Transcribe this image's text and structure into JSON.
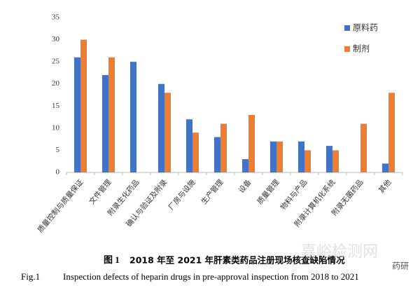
{
  "chart_data": {
    "type": "bar",
    "figure_label": "图 1",
    "title": "2018 年至 2021 年肝素类药品注册现场核查缺陷情况",
    "figure_label_en": "Fig.1",
    "subtitle": "Inspection defects of heparin drugs in pre-approval inspection from 2018 to 2021",
    "categories": [
      "质量控制与质量保证",
      "文件管理",
      "附录生化药品",
      "确认与验证及附录",
      "厂房与设施",
      "生产管理",
      "设备",
      "质量管理",
      "物料与产品",
      "附录计算机化系统",
      "附录无菌药品",
      "其他"
    ],
    "series": [
      {
        "name": "原料药",
        "color": "#4472c4",
        "values": [
          26,
          22,
          25,
          20,
          12,
          8,
          3,
          7,
          7,
          6,
          null,
          2
        ]
      },
      {
        "name": "制剂",
        "color": "#ed7d31",
        "values": [
          30,
          26,
          null,
          18,
          9,
          11,
          13,
          7,
          5,
          5,
          11,
          18
        ]
      }
    ],
    "ylim": [
      0,
      35
    ],
    "yticks": [
      0,
      5,
      10,
      15,
      20,
      25,
      30,
      35
    ],
    "grid": false,
    "legend": "right",
    "watermark": "嘉峪检测网",
    "watermark_logo": "药研"
  }
}
